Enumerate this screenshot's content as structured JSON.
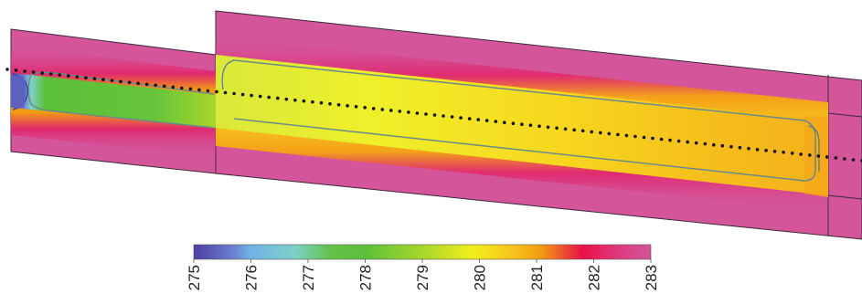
{
  "diagram": {
    "type": "temperature-field-cross-section",
    "centerline_style": "dotted"
  },
  "colorbar": {
    "min": 275,
    "max": 283,
    "ticks": [
      "275",
      "276",
      "277",
      "278",
      "279",
      "280",
      "281",
      "282",
      "283"
    ],
    "colors": {
      "275": "#4b3fa0",
      "276": "#6fb3e6",
      "277": "#7fd0c8",
      "278": "#5cc03a",
      "279": "#a8d62a",
      "280": "#f2ef1c",
      "281": "#f39c12",
      "282": "#e0104a",
      "283": "#d2549a"
    }
  },
  "colors": {
    "background_domain": "#d4559a",
    "outline": "#3a2a3a",
    "contour": "#6a8a8a",
    "dots": "#111111"
  }
}
